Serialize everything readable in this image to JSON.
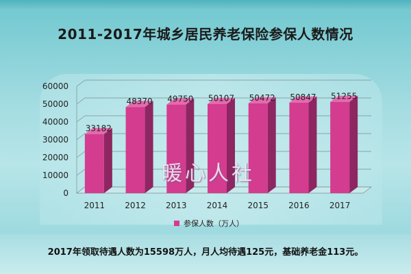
{
  "title": "2011-2017年城乡居民养老保险参保人数情况",
  "watermark": "暖心人社",
  "footer": "2017年领取待遇人数为15598万人，月人均待遇125元，基础养老金113元。",
  "colors": {
    "bar_front": "#d43c8f",
    "bar_side": "#8e2662",
    "bar_top": "#e56aad",
    "grid": "#7a8f94"
  },
  "chart_data": {
    "type": "bar",
    "categories": [
      "2011",
      "2012",
      "2013",
      "2014",
      "2015",
      "2016",
      "2017"
    ],
    "series": [
      {
        "name": "参保人数（万人）",
        "values": [
          33182,
          48370,
          49750,
          50107,
          50472,
          50847,
          51255
        ]
      }
    ],
    "ylim": [
      0,
      60000
    ],
    "yticks": [
      0,
      10000,
      20000,
      30000,
      40000,
      50000,
      60000
    ],
    "data_labels": [
      "33182",
      "48370",
      "49750",
      "50107",
      "50472",
      "50847",
      "51255"
    ],
    "grid": true,
    "legend_position": "bottom"
  }
}
